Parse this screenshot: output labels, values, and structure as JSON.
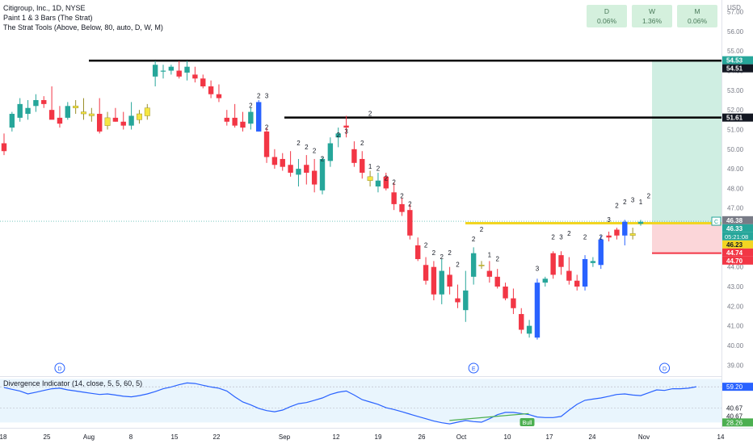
{
  "legend": {
    "symbol_line": "Citigroup, Inc., 1D, NYSE",
    "study1": "Paint 1 & 3 Bars (The Strat)",
    "study2": "The Strat Tools (Above, Below, 80, auto, D, W, M)"
  },
  "timeframe_boxes": [
    {
      "label": "D",
      "value": "0.06%"
    },
    {
      "label": "W",
      "value": "1.36%"
    },
    {
      "label": "M",
      "value": "0.06%"
    }
  ],
  "indicator": {
    "title": "Divergence Indicator (14, close, 5, 5, 60, 5)",
    "axis_labels": [
      "59.20",
      "40.67",
      "40.67",
      "28.26"
    ],
    "bull_label": "Bull"
  },
  "colors": {
    "up": "#26a69a",
    "down": "#f23645",
    "inside_bar": "#f5e642",
    "outside_bar": "#2962ff",
    "resistance": "#000000",
    "support": "#f2d522",
    "stop": "#f23645",
    "indicator_line": "#2962ff",
    "divergence": "#4caf50"
  },
  "chart_data": {
    "type": "candlestick",
    "title": "Citigroup, Inc., 1D, NYSE",
    "currency": "USD",
    "ylim": [
      38.6,
      57.6
    ],
    "y_ticks": [
      "57.00",
      "56.00",
      "55.00",
      "54.00",
      "53.00",
      "52.00",
      "51.00",
      "50.00",
      "49.00",
      "48.00",
      "47.00",
      "46.00",
      "45.00",
      "44.00",
      "43.00",
      "42.00",
      "41.00",
      "40.00",
      "39.00"
    ],
    "x_ticks": [
      "18",
      "25",
      "Aug",
      "8",
      "15",
      "22",
      "Sep",
      "12",
      "19",
      "26",
      "Oct",
      "10",
      "17",
      "24",
      "Nov",
      "14"
    ],
    "candles": [
      {
        "o": 50.3,
        "h": 50.8,
        "l": 49.7,
        "c": 49.9,
        "color": "down"
      },
      {
        "o": 51.1,
        "h": 51.9,
        "l": 50.9,
        "c": 51.8,
        "color": "up"
      },
      {
        "o": 51.6,
        "h": 52.6,
        "l": 51.4,
        "c": 52.3,
        "color": "up"
      },
      {
        "o": 51.8,
        "h": 52.5,
        "l": 51.5,
        "c": 52.1,
        "color": "up"
      },
      {
        "o": 52.2,
        "h": 52.8,
        "l": 51.9,
        "c": 52.5,
        "color": "up"
      },
      {
        "o": 52.5,
        "h": 52.7,
        "l": 52.1,
        "c": 52.3,
        "color": "down"
      },
      {
        "o": 52.0,
        "h": 53.2,
        "l": 51.6,
        "c": 51.5,
        "color": "down"
      },
      {
        "o": 51.6,
        "h": 52.2,
        "l": 51.1,
        "c": 51.3,
        "color": "down"
      },
      {
        "o": 51.6,
        "h": 52.4,
        "l": 51.5,
        "c": 52.2,
        "color": "up"
      },
      {
        "o": 52.1,
        "h": 52.5,
        "l": 51.8,
        "c": 52.2,
        "color": "inside"
      },
      {
        "o": 51.9,
        "h": 52.6,
        "l": 51.5,
        "c": 51.8,
        "color": "inside"
      },
      {
        "o": 51.7,
        "h": 52.1,
        "l": 51.4,
        "c": 51.8,
        "color": "inside"
      },
      {
        "o": 51.8,
        "h": 52.6,
        "l": 50.8,
        "c": 50.9,
        "color": "down"
      },
      {
        "o": 51.2,
        "h": 51.9,
        "l": 51.0,
        "c": 51.6,
        "color": "inside"
      },
      {
        "o": 51.6,
        "h": 52.1,
        "l": 51.4,
        "c": 51.4,
        "color": "down"
      },
      {
        "o": 51.4,
        "h": 51.9,
        "l": 51.0,
        "c": 51.2,
        "color": "down"
      },
      {
        "o": 51.2,
        "h": 52.4,
        "l": 51.0,
        "c": 51.7,
        "color": "up"
      },
      {
        "o": 51.5,
        "h": 52.0,
        "l": 51.3,
        "c": 51.8,
        "color": "inside"
      },
      {
        "o": 51.7,
        "h": 52.3,
        "l": 51.5,
        "c": 52.1,
        "color": "inside"
      },
      {
        "o": 53.7,
        "h": 54.5,
        "l": 53.2,
        "c": 54.3,
        "color": "up"
      },
      {
        "o": 54.0,
        "h": 54.3,
        "l": 53.6,
        "c": 54.0,
        "color": "up"
      },
      {
        "o": 54.0,
        "h": 54.3,
        "l": 53.8,
        "c": 54.2,
        "color": "up"
      },
      {
        "o": 54.0,
        "h": 54.5,
        "l": 53.6,
        "c": 53.7,
        "color": "down"
      },
      {
        "o": 53.9,
        "h": 54.5,
        "l": 53.5,
        "c": 54.2,
        "color": "up"
      },
      {
        "o": 53.8,
        "h": 54.2,
        "l": 53.4,
        "c": 53.6,
        "color": "down"
      },
      {
        "o": 53.6,
        "h": 53.8,
        "l": 53.1,
        "c": 53.2,
        "color": "down"
      },
      {
        "o": 53.2,
        "h": 53.5,
        "l": 52.6,
        "c": 52.8,
        "color": "down"
      },
      {
        "o": 52.8,
        "h": 53.3,
        "l": 52.4,
        "c": 52.6,
        "color": "down"
      },
      {
        "o": 51.6,
        "h": 52.0,
        "l": 51.2,
        "c": 51.4,
        "color": "down"
      },
      {
        "o": 51.6,
        "h": 52.3,
        "l": 51.1,
        "c": 51.2,
        "color": "down"
      },
      {
        "o": 51.4,
        "h": 51.9,
        "l": 50.9,
        "c": 51.1,
        "color": "down"
      },
      {
        "o": 51.3,
        "h": 52.1,
        "l": 51.0,
        "c": 51.9,
        "color": "up"
      },
      {
        "o": 52.4,
        "h": 52.5,
        "l": 50.9,
        "c": 50.9,
        "color": "outside"
      },
      {
        "o": 50.9,
        "h": 51.1,
        "l": 49.3,
        "c": 49.6,
        "color": "down"
      },
      {
        "o": 49.6,
        "h": 50.0,
        "l": 49.0,
        "c": 49.2,
        "color": "down"
      },
      {
        "o": 49.5,
        "h": 49.8,
        "l": 48.9,
        "c": 49.1,
        "color": "down"
      },
      {
        "o": 49.2,
        "h": 49.9,
        "l": 48.6,
        "c": 48.8,
        "color": "down"
      },
      {
        "o": 49.0,
        "h": 49.5,
        "l": 48.1,
        "c": 48.7,
        "color": "up"
      },
      {
        "o": 49.2,
        "h": 49.7,
        "l": 48.2,
        "c": 48.8,
        "color": "down"
      },
      {
        "o": 48.9,
        "h": 49.5,
        "l": 47.8,
        "c": 48.2,
        "color": "down"
      },
      {
        "o": 47.9,
        "h": 49.6,
        "l": 47.7,
        "c": 49.5,
        "color": "up"
      },
      {
        "o": 49.4,
        "h": 50.6,
        "l": 49.1,
        "c": 50.3,
        "color": "up"
      },
      {
        "o": 50.6,
        "h": 51.1,
        "l": 50.1,
        "c": 50.8,
        "color": "up"
      },
      {
        "o": 51.1,
        "h": 51.7,
        "l": 50.6,
        "c": 51.2,
        "color": "down"
      },
      {
        "o": 50.0,
        "h": 50.4,
        "l": 49.1,
        "c": 49.3,
        "color": "down"
      },
      {
        "o": 49.5,
        "h": 49.9,
        "l": 48.5,
        "c": 48.8,
        "color": "down"
      },
      {
        "o": 48.6,
        "h": 48.9,
        "l": 48.1,
        "c": 48.4,
        "color": "inside"
      },
      {
        "o": 48.4,
        "h": 48.8,
        "l": 47.8,
        "c": 48.1,
        "color": "up"
      },
      {
        "o": 48.6,
        "h": 48.8,
        "l": 47.9,
        "c": 48.0,
        "color": "down"
      },
      {
        "o": 47.8,
        "h": 48.3,
        "l": 46.9,
        "c": 47.2,
        "color": "down"
      },
      {
        "o": 47.2,
        "h": 47.5,
        "l": 46.6,
        "c": 46.8,
        "color": "down"
      },
      {
        "o": 46.9,
        "h": 47.2,
        "l": 45.4,
        "c": 45.6,
        "color": "down"
      },
      {
        "o": 45.1,
        "h": 45.5,
        "l": 44.3,
        "c": 44.4,
        "color": "down"
      },
      {
        "o": 44.1,
        "h": 44.5,
        "l": 43.1,
        "c": 43.3,
        "color": "down"
      },
      {
        "o": 44.0,
        "h": 44.3,
        "l": 42.3,
        "c": 42.6,
        "color": "down"
      },
      {
        "o": 42.6,
        "h": 44.4,
        "l": 42.1,
        "c": 43.8,
        "color": "up"
      },
      {
        "o": 43.6,
        "h": 44.0,
        "l": 42.6,
        "c": 43.0,
        "color": "down"
      },
      {
        "o": 42.4,
        "h": 43.1,
        "l": 41.9,
        "c": 42.2,
        "color": "down"
      },
      {
        "o": 41.8,
        "h": 43.8,
        "l": 41.2,
        "c": 42.8,
        "color": "up"
      },
      {
        "o": 43.5,
        "h": 45.0,
        "l": 43.1,
        "c": 44.7,
        "color": "up"
      },
      {
        "o": 44.1,
        "h": 44.3,
        "l": 43.9,
        "c": 44.1,
        "color": "inside"
      },
      {
        "o": 43.8,
        "h": 44.3,
        "l": 43.2,
        "c": 43.5,
        "color": "down"
      },
      {
        "o": 43.5,
        "h": 43.9,
        "l": 42.9,
        "c": 43.0,
        "color": "down"
      },
      {
        "o": 43.0,
        "h": 43.2,
        "l": 42.3,
        "c": 42.4,
        "color": "down"
      },
      {
        "o": 42.4,
        "h": 42.9,
        "l": 41.6,
        "c": 41.9,
        "color": "down"
      },
      {
        "o": 41.6,
        "h": 41.9,
        "l": 40.6,
        "c": 40.8,
        "color": "down"
      },
      {
        "o": 41.0,
        "h": 41.3,
        "l": 40.4,
        "c": 40.6,
        "color": "up"
      },
      {
        "o": 40.4,
        "h": 43.4,
        "l": 40.3,
        "c": 43.2,
        "color": "outside"
      },
      {
        "o": 43.2,
        "h": 43.5,
        "l": 43.0,
        "c": 43.4,
        "color": "up"
      },
      {
        "o": 44.7,
        "h": 44.8,
        "l": 43.4,
        "c": 43.6,
        "color": "down"
      },
      {
        "o": 44.0,
        "h": 44.8,
        "l": 43.6,
        "c": 44.6,
        "color": "down"
      },
      {
        "o": 43.8,
        "h": 44.5,
        "l": 43.1,
        "c": 43.3,
        "color": "down"
      },
      {
        "o": 43.3,
        "h": 43.6,
        "l": 42.8,
        "c": 43.0,
        "color": "down"
      },
      {
        "o": 43.0,
        "h": 44.6,
        "l": 42.8,
        "c": 44.4,
        "color": "outside"
      },
      {
        "o": 44.2,
        "h": 44.5,
        "l": 44.0,
        "c": 44.3,
        "color": "up"
      },
      {
        "o": 44.1,
        "h": 45.6,
        "l": 43.9,
        "c": 45.4,
        "color": "outside"
      },
      {
        "o": 45.5,
        "h": 45.8,
        "l": 45.3,
        "c": 45.6,
        "color": "down"
      },
      {
        "o": 45.6,
        "h": 46.0,
        "l": 45.4,
        "c": 45.9,
        "color": "down"
      },
      {
        "o": 45.6,
        "h": 46.4,
        "l": 45.1,
        "c": 46.3,
        "color": "outside"
      },
      {
        "o": 45.6,
        "h": 46.0,
        "l": 45.4,
        "c": 45.7,
        "color": "inside"
      },
      {
        "o": 46.2,
        "h": 46.4,
        "l": 46.1,
        "c": 46.3,
        "color": "up"
      }
    ],
    "strat_labels": [
      {
        "t": "2",
        "i": 32,
        "y": 52.6
      },
      {
        "t": "3",
        "i": 33,
        "y": 52.6
      },
      {
        "t": "2",
        "i": 31,
        "y": 52.1
      },
      {
        "t": "2",
        "i": 33,
        "y": 51.0
      },
      {
        "t": "2",
        "i": 37,
        "y": 50.2
      },
      {
        "t": "2",
        "i": 38,
        "y": 50.0
      },
      {
        "t": "2",
        "i": 39,
        "y": 49.8
      },
      {
        "t": "2",
        "i": 40,
        "y": 49.4
      },
      {
        "t": "2",
        "i": 42,
        "y": 50.6
      },
      {
        "t": "2",
        "i": 45,
        "y": 50.2
      },
      {
        "t": "3",
        "i": 43,
        "y": 50.8
      },
      {
        "t": "1",
        "i": 46,
        "y": 49.0
      },
      {
        "t": "2",
        "i": 47,
        "y": 48.9
      },
      {
        "t": "2",
        "i": 46,
        "y": 51.7
      },
      {
        "t": "2",
        "i": 48,
        "y": 48.4
      },
      {
        "t": "2",
        "i": 49,
        "y": 48.2
      },
      {
        "t": "2",
        "i": 50,
        "y": 47.5
      },
      {
        "t": "2",
        "i": 51,
        "y": 47.1
      },
      {
        "t": "2",
        "i": 53,
        "y": 45.0
      },
      {
        "t": "2",
        "i": 54,
        "y": 44.6
      },
      {
        "t": "2",
        "i": 55,
        "y": 44.4
      },
      {
        "t": "2",
        "i": 56,
        "y": 44.6
      },
      {
        "t": "2",
        "i": 57,
        "y": 44.0
      },
      {
        "t": "2",
        "i": 59,
        "y": 45.3
      },
      {
        "t": "2",
        "i": 60,
        "y": 45.8
      },
      {
        "t": "1",
        "i": 61,
        "y": 44.5
      },
      {
        "t": "2",
        "i": 62,
        "y": 44.3
      },
      {
        "t": "3",
        "i": 67,
        "y": 43.8
      },
      {
        "t": "2",
        "i": 69,
        "y": 45.4
      },
      {
        "t": "3",
        "i": 70,
        "y": 45.4
      },
      {
        "t": "2",
        "i": 71,
        "y": 45.6
      },
      {
        "t": "2",
        "i": 73,
        "y": 45.4
      },
      {
        "t": "2",
        "i": 75,
        "y": 45.4
      },
      {
        "t": "3",
        "i": 76,
        "y": 46.3
      },
      {
        "t": "2",
        "i": 77,
        "y": 47.0
      },
      {
        "t": "2",
        "i": 78,
        "y": 47.2
      },
      {
        "t": "3",
        "i": 79,
        "y": 47.3
      },
      {
        "t": "1",
        "i": 80,
        "y": 47.2
      },
      {
        "t": "2",
        "i": 81,
        "y": 47.5
      }
    ],
    "levels": {
      "resistance_1": 54.51,
      "resistance_2": 51.61,
      "support": 46.23,
      "stop": 44.7,
      "target_top": 54.53,
      "stop_zone_low": 44.74
    },
    "price_labels": [
      {
        "text": "54.53",
        "value": 54.53,
        "style": "green"
      },
      {
        "text": "54.51",
        "value": 54.51,
        "style": "black"
      },
      {
        "text": "51.61",
        "value": 51.61,
        "style": "black"
      },
      {
        "text": "46.38",
        "value": 46.38,
        "style": "gray"
      },
      {
        "text": "46.33",
        "value": 46.33,
        "style": "green",
        "extra": "05:21:08"
      },
      {
        "text": "46.23",
        "value": 46.23,
        "style": "yellow"
      },
      {
        "text": "44.74",
        "value": 44.74,
        "style": "pinkline"
      },
      {
        "text": "44.70",
        "value": 44.7,
        "style": "red"
      }
    ],
    "markers": [
      {
        "text": "D",
        "i": 7
      },
      {
        "text": "E",
        "i": 59
      },
      {
        "text": "D",
        "i": 83
      }
    ],
    "current_marker": "C",
    "indicator_series": [
      58.5,
      57.0,
      55.5,
      53.0,
      54.5,
      56.0,
      57.5,
      58.0,
      56.5,
      55.5,
      54.5,
      53.5,
      52.5,
      53.0,
      52.0,
      51.0,
      50.5,
      51.5,
      53.0,
      55.0,
      57.5,
      59.0,
      61.0,
      62.5,
      62.0,
      60.5,
      59.0,
      58.0,
      55.5,
      50.5,
      46.0,
      43.5,
      40.5,
      38.5,
      37.5,
      39.0,
      42.0,
      44.5,
      45.5,
      47.5,
      49.5,
      52.5,
      54.5,
      55.5,
      52.0,
      48.0,
      46.0,
      44.0,
      41.0,
      39.5,
      37.5,
      35.5,
      33.5,
      31.5,
      29.5,
      28.0,
      27.0,
      28.5,
      30.0,
      29.0,
      28.5,
      31.5,
      35.0,
      37.0,
      37.0,
      36.0,
      35.0,
      33.0,
      32.5,
      32.5,
      33.5,
      39.0,
      44.0,
      47.5,
      48.5,
      49.5,
      51.0,
      52.5,
      53.0,
      52.0,
      51.5,
      54.0,
      56.5,
      56.0,
      57.5,
      57.5,
      58.0,
      59.2
    ],
    "indicator_ylim": [
      25,
      67
    ],
    "indicator_bands": [
      40.67,
      59.2
    ],
    "divergence": {
      "from": 58,
      "to": 70
    }
  }
}
